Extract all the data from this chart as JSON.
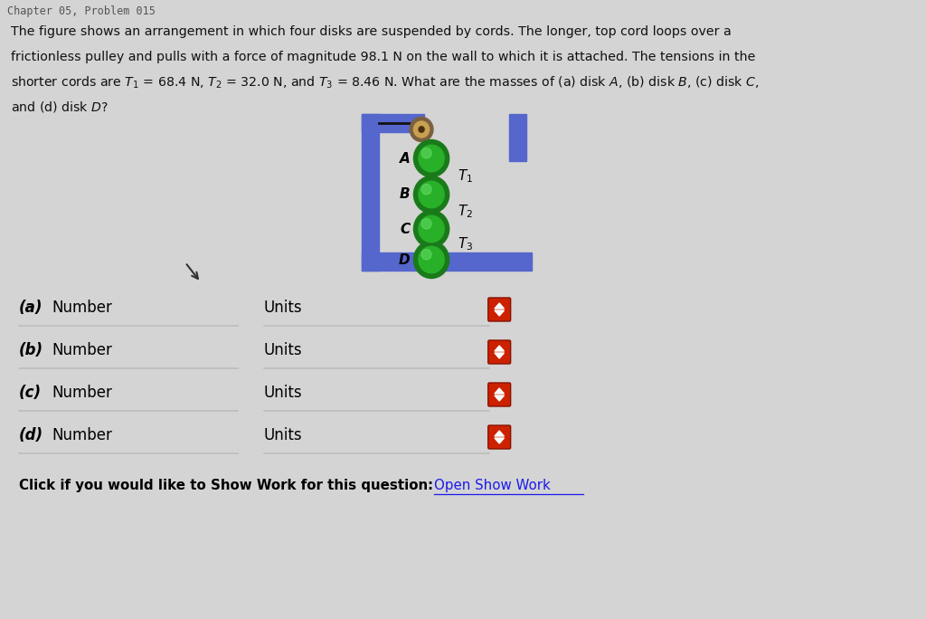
{
  "bg_color": "#d4d4d4",
  "header_text": "Chapter 05, Problem 015",
  "problem_lines": [
    "The figure shows an arrangement in which four disks are suspended by cords. The longer, top cord loops over a",
    "frictionless pulley and pulls with a force of magnitude 98.1 N on the wall to which it is attached. The tensions in the",
    "shorter cords are $T_1$ = 68.4 N, $T_2$ = 32.0 N, and $T_3$ = 8.46 N. What are the masses of (a) disk $A$, (b) disk $B$, (c) disk $C$,",
    "and (d) disk $D$?"
  ],
  "disk_labels": [
    "A",
    "B",
    "C",
    "D"
  ],
  "tension_labels": [
    "$T_1$",
    "$T_2$",
    "$T_3$"
  ],
  "disk_color_outer": "#1a7a1a",
  "disk_color_inner": "#28b028",
  "disk_color_highlight": "#66dd66",
  "frame_color": "#5566cc",
  "cord_color": "#111111",
  "pulley_color_outer": "#7a6040",
  "pulley_color_inner": "#c8a050",
  "pulley_color_center": "#4a3010",
  "answer_rows": [
    "(a)",
    "(b)",
    "(c)",
    "(d)"
  ],
  "units_label": "Units",
  "bottom_text": "Click if you would like to Show Work for this question:",
  "bottom_link": "Open Show Work",
  "input_line_color": "#bbbbbb",
  "spinner_color": "#cc2200"
}
